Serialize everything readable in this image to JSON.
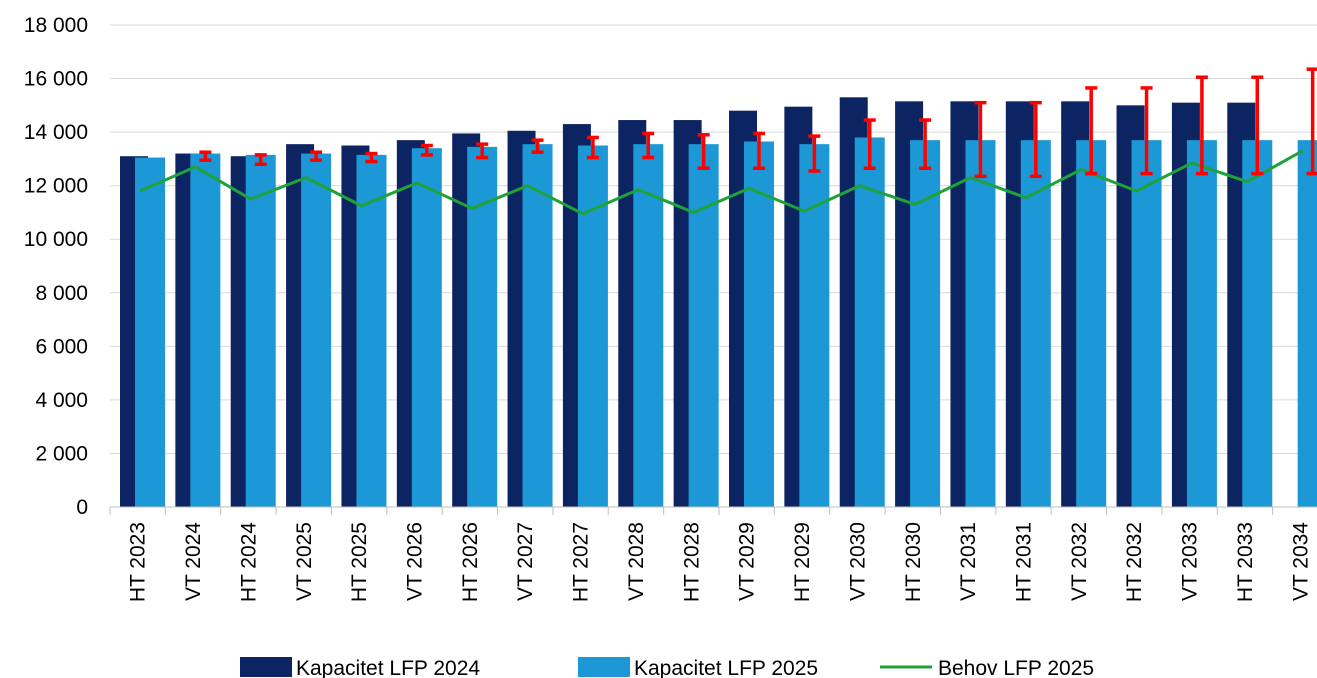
{
  "chart_data": {
    "type": "bar",
    "categories": [
      "HT 2023",
      "VT 2024",
      "HT 2024",
      "VT 2025",
      "HT 2025",
      "VT 2026",
      "HT 2026",
      "VT 2027",
      "HT 2027",
      "VT 2028",
      "HT 2028",
      "VT 2029",
      "HT 2029",
      "VT 2030",
      "HT 2030",
      "VT 2031",
      "HT 2031",
      "VT 2032",
      "HT 2032",
      "VT 2033",
      "HT 2033",
      "VT 2034"
    ],
    "series": [
      {
        "name": "Kapacitet LFP 2024",
        "kind": "bar",
        "color": "#0c2461",
        "values": [
          13100,
          13200,
          13100,
          13550,
          13500,
          13700,
          13950,
          14050,
          14300,
          14450,
          14450,
          14800,
          14950,
          15300,
          15150,
          15150,
          15150,
          15150,
          15000,
          15100,
          15100,
          null
        ]
      },
      {
        "name": "Kapacitet LFP 2025",
        "kind": "bar",
        "color": "#1b98d5",
        "values": [
          13050,
          13200,
          13150,
          13200,
          13150,
          13400,
          13450,
          13550,
          13500,
          13550,
          13550,
          13650,
          13550,
          13800,
          13700,
          13700,
          13700,
          13700,
          13700,
          13700,
          13700,
          13700
        ]
      },
      {
        "name": "Behov LFP 2025",
        "kind": "line",
        "color": "#1fa23a",
        "values": [
          11800,
          12700,
          11500,
          12300,
          11250,
          12100,
          11150,
          12000,
          10950,
          11850,
          11000,
          11900,
          11050,
          12000,
          11300,
          12300,
          11550,
          12600,
          11800,
          12850,
          12150,
          13300
        ]
      }
    ],
    "error_bars": {
      "series": "Kapacitet LFP 2025",
      "color": "#ff0000",
      "ranges": [
        null,
        [
          12950,
          13250
        ],
        [
          12800,
          13150
        ],
        [
          12950,
          13250
        ],
        [
          12900,
          13200
        ],
        [
          13150,
          13500
        ],
        [
          13050,
          13550
        ],
        [
          13250,
          13700
        ],
        [
          13050,
          13800
        ],
        [
          13050,
          13950
        ],
        [
          12650,
          13900
        ],
        [
          12650,
          13950
        ],
        [
          12550,
          13850
        ],
        [
          12650,
          14450
        ],
        [
          12650,
          14450
        ],
        [
          12350,
          15100
        ],
        [
          12350,
          15100
        ],
        [
          12450,
          15650
        ],
        [
          12450,
          15650
        ],
        [
          12450,
          16050
        ],
        [
          12450,
          16050
        ],
        [
          12450,
          16350
        ]
      ]
    },
    "ylim": [
      0,
      18000
    ],
    "yticks": [
      0,
      2000,
      4000,
      6000,
      8000,
      10000,
      12000,
      14000,
      16000,
      18000
    ],
    "ytick_labels": [
      "0",
      "2 000",
      "4 000",
      "6 000",
      "8 000",
      "10 000",
      "12 000",
      "14 000",
      "16 000",
      "18 000"
    ],
    "grid": true,
    "legend_position": "bottom",
    "title": "",
    "xlabel": "",
    "ylabel": ""
  }
}
